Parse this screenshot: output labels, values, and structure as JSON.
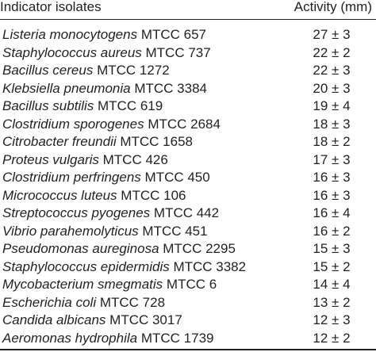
{
  "table": {
    "headers": {
      "isolate": "Indicator isolates",
      "activity": "Activity (mm)"
    },
    "rows": [
      {
        "species": "Listeria monocytogens",
        "strain": "MTCC 657",
        "activity": "27 ± 3"
      },
      {
        "species": "Staphylococcus aureus",
        "strain": "MTCC 737",
        "activity": "22 ± 2"
      },
      {
        "species": "Bacillus cereus",
        "strain": "MTCC 1272",
        "activity": "22 ± 3"
      },
      {
        "species": "Klebsiella pneumonia",
        "strain": "MTCC 3384",
        "activity": "20 ± 3"
      },
      {
        "species": "Bacillus subtilis",
        "strain": "MTCC 619",
        "activity": "19 ± 4"
      },
      {
        "species": "Clostridium sporogenes",
        "strain": "MTCC 2684",
        "activity": "18 ± 3"
      },
      {
        "species": "Citrobacter freundii",
        "strain": "MTCC 1658",
        "activity": "18 ± 2"
      },
      {
        "species": "Proteus vulgaris",
        "strain": "MTCC 426",
        "activity": "17 ± 3"
      },
      {
        "species": "Clostridium perfringens",
        "strain": "MTCC 450",
        "activity": "16 ± 3"
      },
      {
        "species": "Micrococcus luteus",
        "strain": "MTCC 106",
        "activity": "16 ± 3"
      },
      {
        "species": "Streptococcus pyogenes",
        "strain": "MTCC 442",
        "activity": "16 ± 4"
      },
      {
        "species": "Vibrio parahemolyticus",
        "strain": "MTCC 451",
        "activity": "16 ± 2"
      },
      {
        "species": "Pseudomonas aureginosa",
        "strain": "MTCC 2295",
        "activity": "15 ± 3"
      },
      {
        "species": "Staphylococcus epidermidis",
        "strain": "MTCC 3382",
        "activity": "15 ± 2"
      },
      {
        "species": "Mycobacterium smegmatis",
        "strain": "MTCC 6",
        "activity": "14 ± 4"
      },
      {
        "species": "Escherichia coli",
        "strain": "MTCC 728",
        "activity": "13 ± 2"
      },
      {
        "species": "Candida albicans",
        "strain": "MTCC 3017",
        "activity": "12 ± 3"
      },
      {
        "species": "Aeromonas hydrophila",
        "strain": "MTCC 1739",
        "activity": "12 ± 2"
      }
    ]
  }
}
